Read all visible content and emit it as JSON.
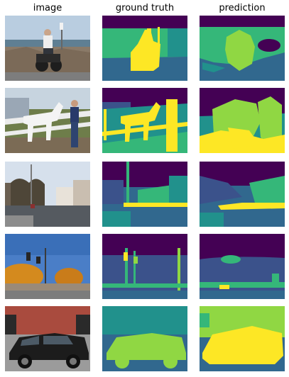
{
  "headers": {
    "image": "image",
    "ground_truth": "ground truth",
    "prediction": "prediction"
  },
  "palette": {
    "viridis_dark": "#440154",
    "viridis_indigo": "#3b528b",
    "viridis_blue": "#31688e",
    "viridis_teal": "#21918c",
    "viridis_green": "#35b779",
    "viridis_lime": "#90d743",
    "viridis_yellow": "#fde725"
  },
  "rows": [
    {
      "row_subject": "man-on-motorbike"
    },
    {
      "row_subject": "man-with-white-horse"
    },
    {
      "row_subject": "city-street"
    },
    {
      "row_subject": "street-with-traffic-lights"
    },
    {
      "row_subject": "black-suv"
    }
  ]
}
